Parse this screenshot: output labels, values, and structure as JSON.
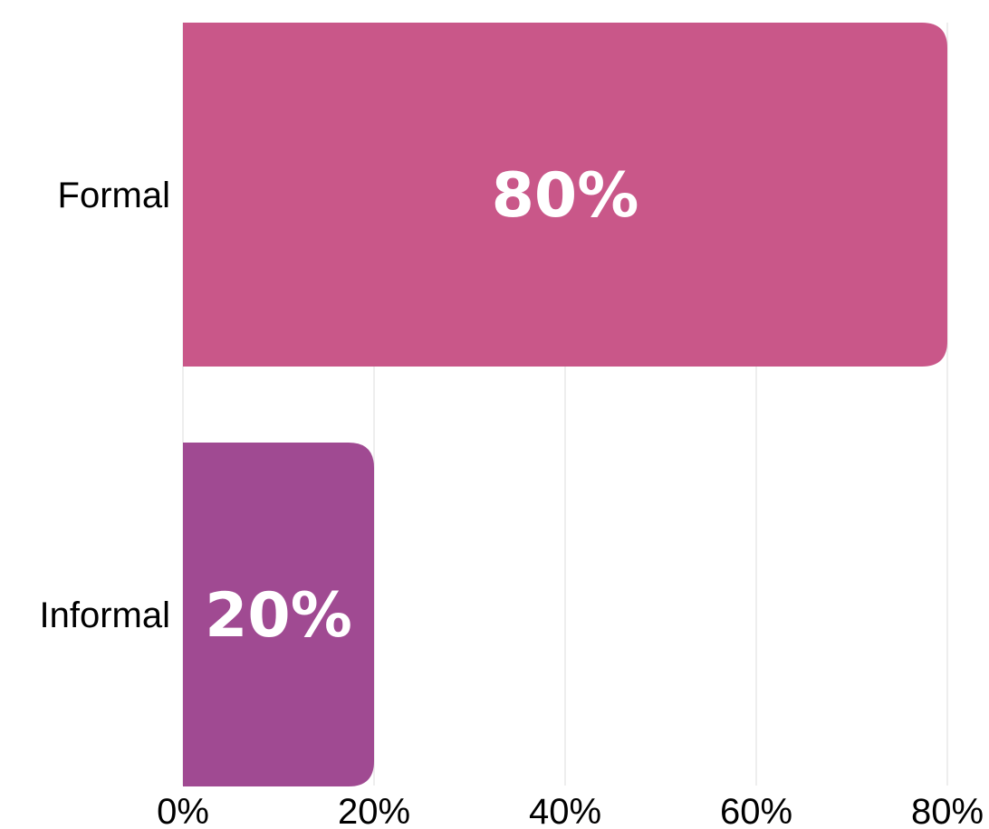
{
  "chart_data": {
    "type": "bar",
    "orientation": "horizontal",
    "categories": [
      "Formal",
      "Informal"
    ],
    "values": [
      80,
      20
    ],
    "data_labels": [
      "80%",
      "20%"
    ],
    "colors": [
      "#c95789",
      "#a04a92"
    ],
    "xlim": [
      0,
      80
    ],
    "x_ticks": [
      0,
      20,
      40,
      60,
      80
    ],
    "x_tick_labels": [
      "0%",
      "20%",
      "40%",
      "60%",
      "80%"
    ],
    "title": "",
    "xlabel": "",
    "ylabel": "",
    "grid": true,
    "legend": "none"
  }
}
